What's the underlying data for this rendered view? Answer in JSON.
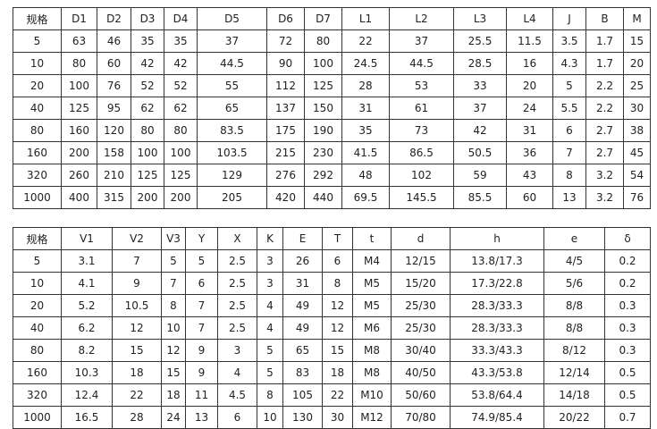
{
  "table1": {
    "header": [
      "规格",
      "D1",
      "D2",
      "D3",
      "D4",
      "D5",
      "D6",
      "D7",
      "L1",
      "L2",
      "L3",
      "L4",
      "J",
      "B",
      "M"
    ],
    "rows": [
      [
        "5",
        "63",
        "46",
        "35",
        "35",
        "37",
        "72",
        "80",
        "22",
        "37",
        "25.5",
        "11.5",
        "3.5",
        "1.7",
        "15"
      ],
      [
        "10",
        "80",
        "60",
        "42",
        "42",
        "44.5",
        "90",
        "100",
        "24.5",
        "44.5",
        "28.5",
        "16",
        "4.3",
        "1.7",
        "20"
      ],
      [
        "20",
        "100",
        "76",
        "52",
        "52",
        "55",
        "112",
        "125",
        "28",
        "53",
        "33",
        "20",
        "5",
        "2.2",
        "25"
      ],
      [
        "40",
        "125",
        "95",
        "62",
        "62",
        "65",
        "137",
        "150",
        "31",
        "61",
        "37",
        "24",
        "5.5",
        "2.2",
        "30"
      ],
      [
        "80",
        "160",
        "120",
        "80",
        "80",
        "83.5",
        "175",
        "190",
        "35",
        "73",
        "42",
        "31",
        "6",
        "2.7",
        "38"
      ],
      [
        "160",
        "200",
        "158",
        "100",
        "100",
        "103.5",
        "215",
        "230",
        "41.5",
        "86.5",
        "50.5",
        "36",
        "7",
        "2.7",
        "45"
      ],
      [
        "320",
        "260",
        "210",
        "125",
        "125",
        "129",
        "276",
        "292",
        "48",
        "102",
        "59",
        "43",
        "8",
        "3.2",
        "54"
      ],
      [
        "1000",
        "400",
        "315",
        "200",
        "200",
        "205",
        "420",
        "440",
        "69.5",
        "145.5",
        "85.5",
        "60",
        "13",
        "3.2",
        "76"
      ]
    ]
  },
  "table2": {
    "header": [
      "规格",
      "V1",
      "V2",
      "V3",
      "Y",
      "X",
      "K",
      "E",
      "T",
      "t",
      "d",
      "h",
      "e",
      "δ"
    ],
    "rows": [
      [
        "5",
        "3.1",
        "7",
        "5",
        "5",
        "2.5",
        "3",
        "26",
        "6",
        "M4",
        "12/15",
        "13.8/17.3",
        "4/5",
        "0.2"
      ],
      [
        "10",
        "4.1",
        "9",
        "7",
        "6",
        "2.5",
        "3",
        "31",
        "8",
        "M5",
        "15/20",
        "17.3/22.8",
        "5/6",
        "0.2"
      ],
      [
        "20",
        "5.2",
        "10.5",
        "8",
        "7",
        "2.5",
        "4",
        "49",
        "12",
        "M5",
        "25/30",
        "28.3/33.3",
        "8/8",
        "0.3"
      ],
      [
        "40",
        "6.2",
        "12",
        "10",
        "7",
        "2.5",
        "4",
        "49",
        "12",
        "M6",
        "25/30",
        "28.3/33.3",
        "8/8",
        "0.3"
      ],
      [
        "80",
        "8.2",
        "15",
        "12",
        "9",
        "3",
        "5",
        "65",
        "15",
        "M8",
        "30/40",
        "33.3/43.3",
        "8/12",
        "0.3"
      ],
      [
        "160",
        "10.3",
        "18",
        "15",
        "9",
        "4",
        "5",
        "83",
        "18",
        "M8",
        "40/50",
        "43.3/53.8",
        "12/14",
        "0.5"
      ],
      [
        "320",
        "12.4",
        "22",
        "18",
        "11",
        "4.5",
        "8",
        "105",
        "22",
        "M10",
        "50/60",
        "53.8/64.4",
        "14/18",
        "0.5"
      ],
      [
        "1000",
        "16.5",
        "28",
        "24",
        "13",
        "6",
        "10",
        "130",
        "30",
        "M12",
        "70/80",
        "74.9/85.4",
        "20/22",
        "0.7"
      ]
    ]
  }
}
